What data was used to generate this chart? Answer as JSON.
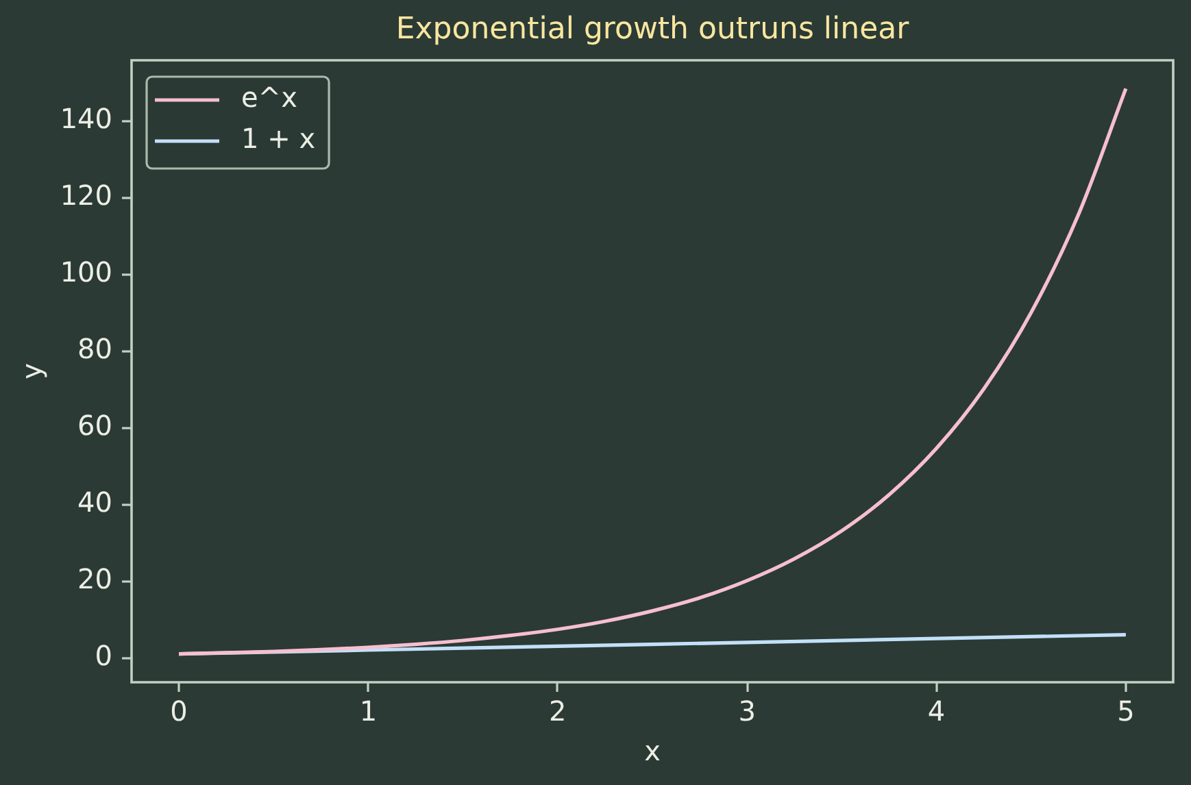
{
  "chart_data": {
    "type": "line",
    "title": "Exponential growth outruns linear",
    "xlabel": "x",
    "ylabel": "y",
    "x": [
      0,
      0.25,
      0.5,
      0.75,
      1,
      1.25,
      1.5,
      1.75,
      2,
      2.25,
      2.5,
      2.75,
      3,
      3.25,
      3.5,
      3.75,
      4,
      4.25,
      4.5,
      4.75,
      5
    ],
    "series": [
      {
        "name": "e^x",
        "color": "#f6bfd0",
        "values": [
          1.0,
          1.3,
          1.6,
          2.1,
          2.7,
          3.5,
          4.5,
          5.8,
          7.4,
          9.5,
          12.2,
          15.6,
          20.1,
          25.8,
          33.1,
          42.5,
          54.6,
          70.1,
          90.0,
          115.6,
          148.4
        ]
      },
      {
        "name": "1 + x",
        "color": "#c2e0f8",
        "x": [
          0,
          1,
          2,
          3,
          4,
          5
        ],
        "values": [
          1,
          2,
          3,
          4,
          5,
          6
        ]
      }
    ],
    "xlim": [
      -0.25,
      5.25
    ],
    "ylim": [
      -6.4,
      155.8
    ],
    "xticks": [
      0,
      1,
      2,
      3,
      4,
      5
    ],
    "yticks": [
      0,
      20,
      40,
      60,
      80,
      100,
      120,
      140
    ],
    "legend": "top left"
  }
}
